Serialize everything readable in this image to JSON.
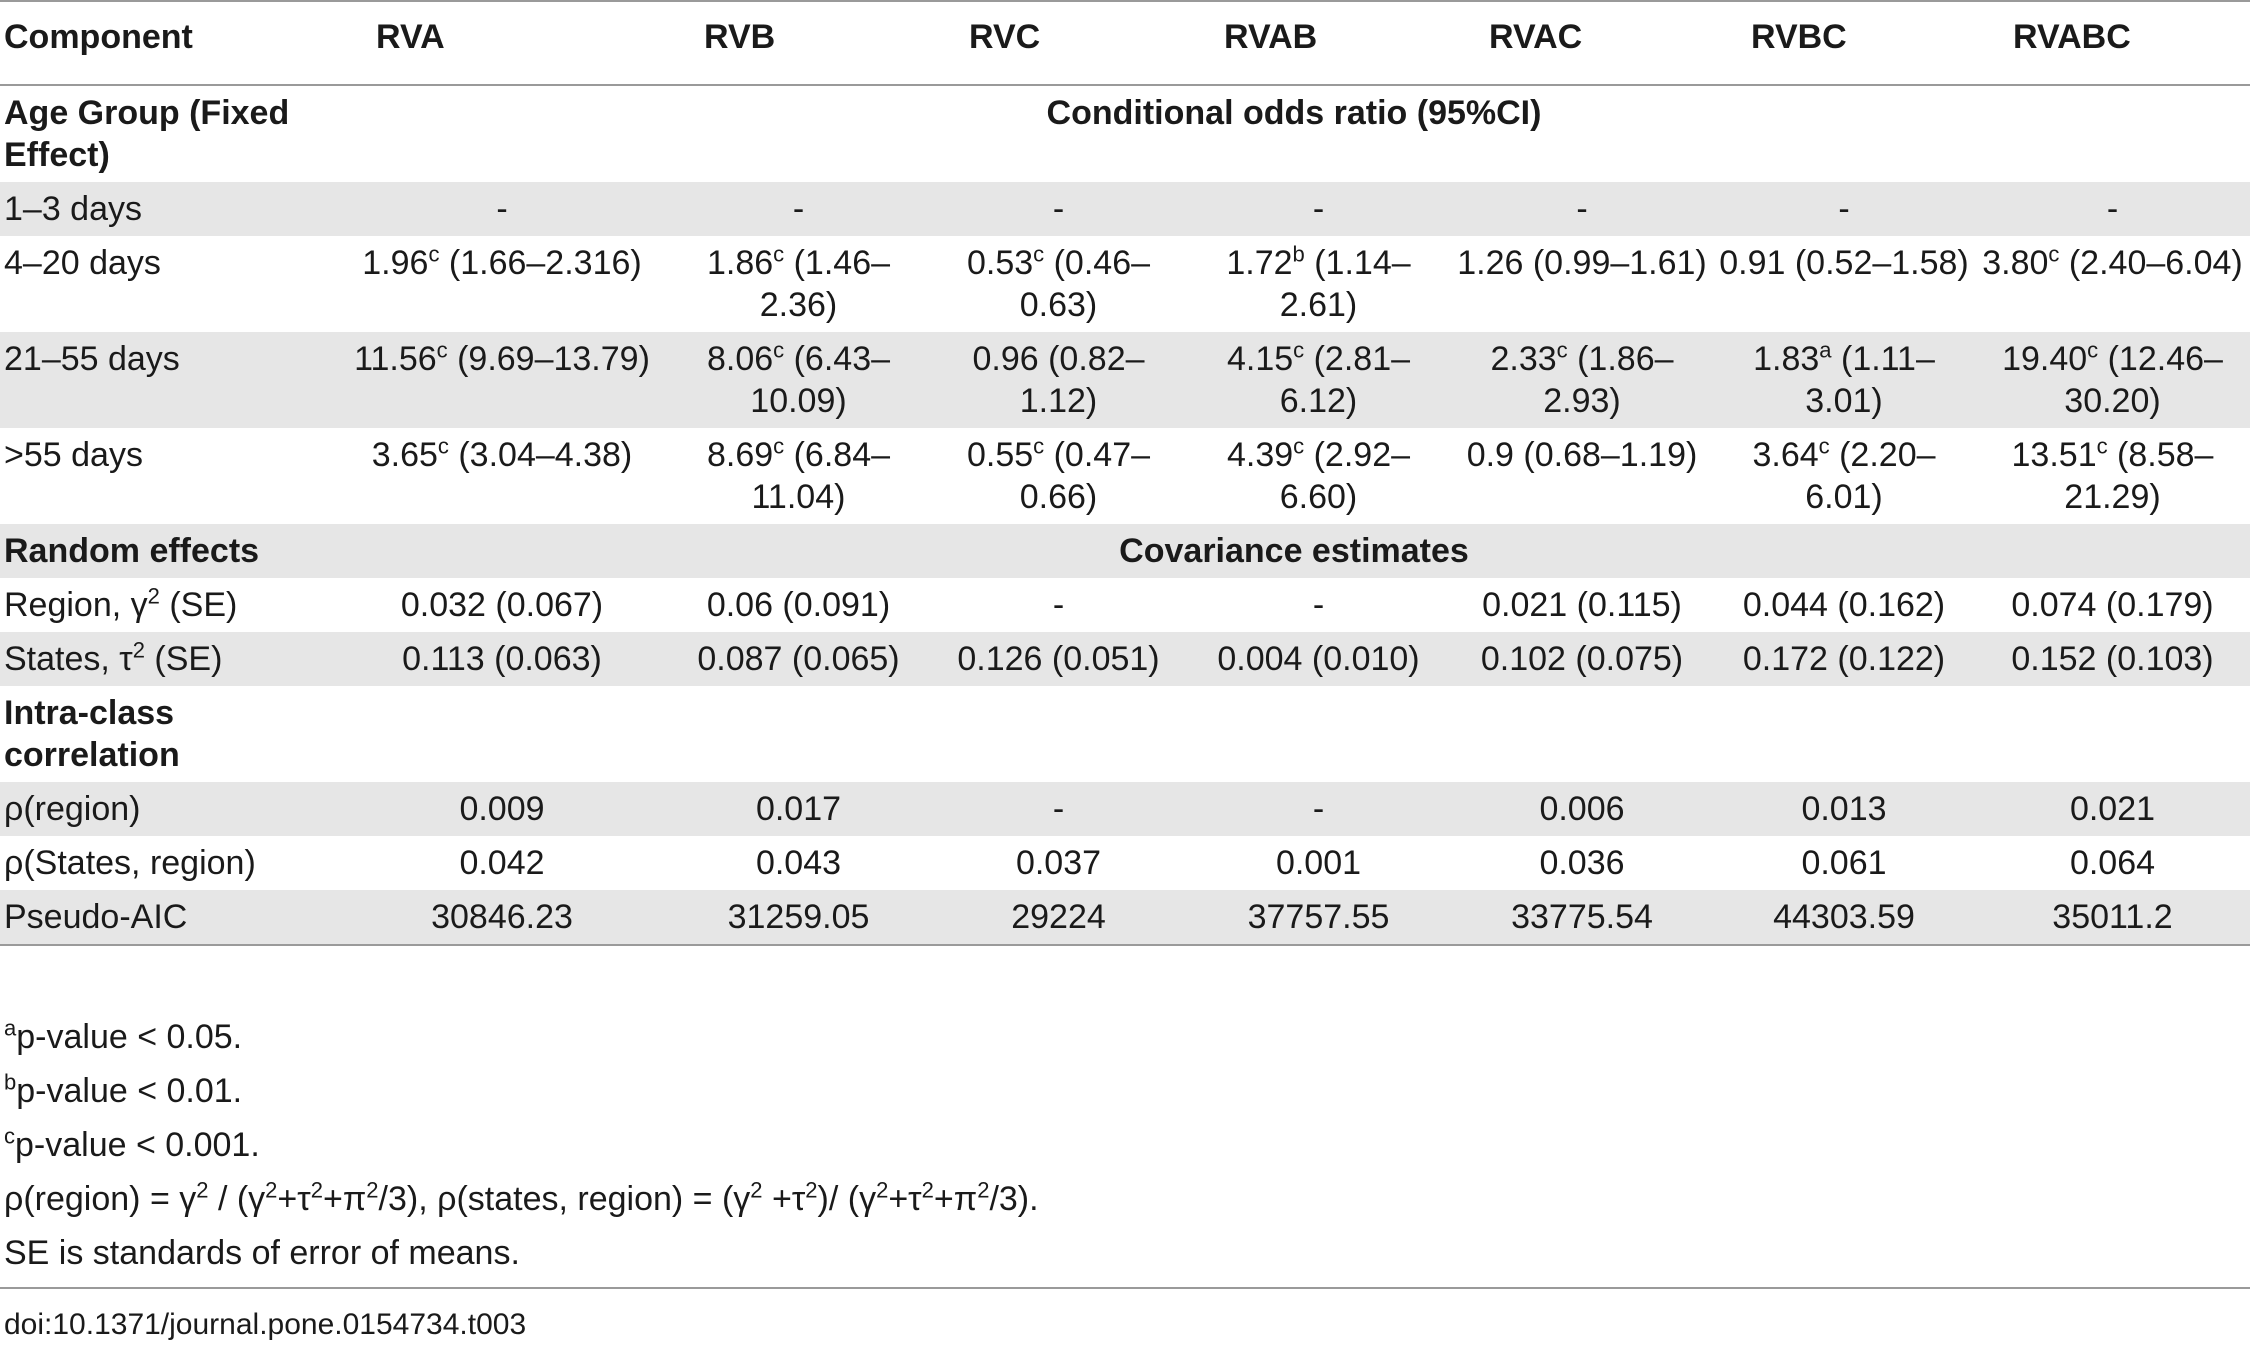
{
  "table": {
    "headers": [
      "Component",
      "RVA",
      "RVB",
      "RVC",
      "RVAB",
      "RVAC",
      "RVBC",
      "RVABC"
    ],
    "sections": {
      "fixed_label": "Age Group (Fixed Effect)",
      "fixed_span": "Conditional odds ratio (95%CI)",
      "random_label": "Random effects",
      "random_span": "Covariance estimates",
      "icc_label": "Intra-class correlation"
    },
    "rows": {
      "age_1_3": {
        "label": "1–3 days",
        "cells": [
          {
            "v": "-",
            "sup": "",
            "rest": ""
          },
          {
            "v": "-",
            "sup": "",
            "rest": ""
          },
          {
            "v": "-",
            "sup": "",
            "rest": ""
          },
          {
            "v": "-",
            "sup": "",
            "rest": ""
          },
          {
            "v": "-",
            "sup": "",
            "rest": ""
          },
          {
            "v": "-",
            "sup": "",
            "rest": ""
          },
          {
            "v": "-",
            "sup": "",
            "rest": ""
          }
        ]
      },
      "age_4_20": {
        "label": "4–20 days",
        "cells": [
          {
            "v": "1.96",
            "sup": "c",
            "rest": " (1.66–2.316)"
          },
          {
            "v": "1.86",
            "sup": "c",
            "rest": " (1.46–2.36)"
          },
          {
            "v": "0.53",
            "sup": "c",
            "rest": " (0.46–0.63)"
          },
          {
            "v": "1.72",
            "sup": "b",
            "rest": " (1.14–2.61)"
          },
          {
            "v": "1.26 (0.99–1.61)",
            "sup": "",
            "rest": ""
          },
          {
            "v": "0.91 (0.52–1.58)",
            "sup": "",
            "rest": ""
          },
          {
            "v": "3.80",
            "sup": "c",
            "rest": " (2.40–6.04)"
          }
        ]
      },
      "age_21_55": {
        "label": "21–55 days",
        "cells": [
          {
            "v": "11.56",
            "sup": "c",
            "rest": " (9.69–13.79)"
          },
          {
            "v": "8.06",
            "sup": "c",
            "rest": " (6.43–10.09)"
          },
          {
            "v": "0.96 (0.82–1.12)",
            "sup": "",
            "rest": ""
          },
          {
            "v": "4.15",
            "sup": "c",
            "rest": " (2.81–6.12)"
          },
          {
            "v": "2.33",
            "sup": "c",
            "rest": " (1.86–2.93)"
          },
          {
            "v": "1.83",
            "sup": "a",
            "rest": " (1.11–3.01)"
          },
          {
            "v": "19.40",
            "sup": "c",
            "rest": " (12.46–30.20)"
          }
        ]
      },
      "age_55": {
        "label": ">55 days",
        "cells": [
          {
            "v": "3.65",
            "sup": "c",
            "rest": " (3.04–4.38)"
          },
          {
            "v": "8.69",
            "sup": "c",
            "rest": " (6.84–11.04)"
          },
          {
            "v": "0.55",
            "sup": "c",
            "rest": " (0.47–0.66)"
          },
          {
            "v": "4.39",
            "sup": "c",
            "rest": " (2.92–6.60)"
          },
          {
            "v": "0.9 (0.68–1.19)",
            "sup": "",
            "rest": ""
          },
          {
            "v": "3.64",
            "sup": "c",
            "rest": " (2.20–6.01)"
          },
          {
            "v": "13.51",
            "sup": "c",
            "rest": " (8.58–21.29)"
          }
        ]
      },
      "region": {
        "label_pre": "Region, γ",
        "label_sup": "2",
        "label_post": " (SE)",
        "cells": [
          "0.032 (0.067)",
          "0.06 (0.091)",
          "-",
          "-",
          "0.021 (0.115)",
          "0.044 (0.162)",
          "0.074 (0.179)"
        ]
      },
      "states": {
        "label_pre": "States, τ",
        "label_sup": "2",
        "label_post": " (SE)",
        "cells": [
          "0.113 (0.063)",
          "0.087 (0.065)",
          "0.126 (0.051)",
          "0.004 (0.010)",
          "0.102 (0.075)",
          "0.172 (0.122)",
          "0.152 (0.103)"
        ]
      },
      "rho_region": {
        "label": "ρ(region)",
        "cells": [
          "0.009",
          "0.017",
          "-",
          "-",
          "0.006",
          "0.013",
          "0.021"
        ]
      },
      "rho_states": {
        "label": "ρ(States, region)",
        "cells": [
          "0.042",
          "0.043",
          "0.037",
          "0.001",
          "0.036",
          "0.061",
          "0.064"
        ]
      },
      "aic": {
        "label": "Pseudo-AIC",
        "cells": [
          "30846.23",
          "31259.05",
          "29224",
          "37757.55",
          "33775.54",
          "44303.59",
          "35011.2"
        ]
      }
    }
  },
  "footnotes": {
    "a_sup": "a",
    "a_text": "p-value < 0.05.",
    "b_sup": "b",
    "b_text": "p-value < 0.01.",
    "c_sup": "c",
    "c_text": "p-value < 0.001.",
    "formula": {
      "p1": "ρ(region) = γ",
      "s1": "2",
      "p2": " / (γ",
      "s2": "2",
      "p3": "+τ",
      "s3": "2",
      "p4": "+π",
      "s4": "2",
      "p5": "/3), ρ(states, region) = (γ",
      "s5": "2",
      "p6": " +τ",
      "s6": "2",
      "p7": ")/ (γ",
      "s7": "2",
      "p8": "+τ",
      "s8": "2",
      "p9": "+π",
      "s9": "2",
      "p10": "/3)."
    },
    "se_note": "SE is standards of error of means."
  },
  "doi": "doi:10.1371/journal.pone.0154734.t003"
}
